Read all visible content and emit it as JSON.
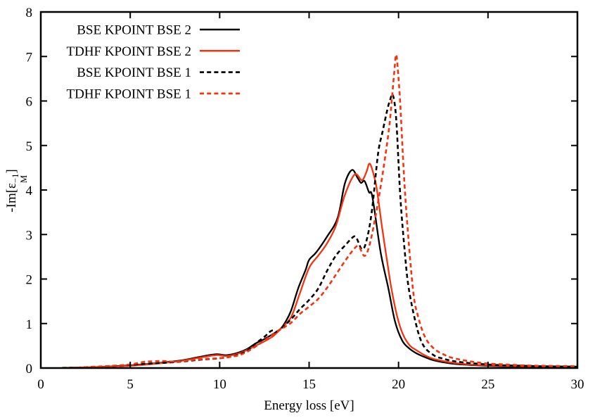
{
  "chart_data": {
    "type": "line",
    "title": "",
    "xlabel": "Energy loss [eV]",
    "ylabel": "-Im[eps_M^-1]",
    "ylabel_parts": {
      "pre": "-Im[ε",
      "sup": "−1",
      "sub": "M",
      "post": "]"
    },
    "xlim": [
      0,
      30
    ],
    "ylim": [
      0,
      8
    ],
    "x_ticks": [
      0,
      5,
      10,
      15,
      20,
      25,
      30
    ],
    "y_ticks": [
      0,
      1,
      2,
      3,
      4,
      5,
      6,
      7,
      8
    ],
    "grid": false,
    "legend_position": "top-left",
    "axis_color": "#000000",
    "series": [
      {
        "name": "BSE KPOINT BSE 2",
        "color": "#000000",
        "style": "solid",
        "points": [
          [
            1.2,
            0.005
          ],
          [
            2,
            0.01
          ],
          [
            3,
            0.02
          ],
          [
            4,
            0.04
          ],
          [
            5,
            0.06
          ],
          [
            6,
            0.09
          ],
          [
            7,
            0.13
          ],
          [
            8,
            0.18
          ],
          [
            9,
            0.26
          ],
          [
            9.8,
            0.31
          ],
          [
            10.4,
            0.29
          ],
          [
            11,
            0.34
          ],
          [
            11.5,
            0.42
          ],
          [
            12,
            0.55
          ],
          [
            12.5,
            0.65
          ],
          [
            13,
            0.77
          ],
          [
            13.4,
            0.88
          ],
          [
            13.7,
            1.05
          ],
          [
            14,
            1.3
          ],
          [
            14.4,
            1.8
          ],
          [
            14.8,
            2.2
          ],
          [
            15,
            2.43
          ],
          [
            15.4,
            2.6
          ],
          [
            16,
            2.95
          ],
          [
            16.6,
            3.38
          ],
          [
            17,
            4.15
          ],
          [
            17.4,
            4.45
          ],
          [
            17.7,
            4.28
          ],
          [
            17.9,
            4.16
          ],
          [
            18.1,
            4.2
          ],
          [
            18.35,
            3.95
          ],
          [
            18.54,
            3.84
          ],
          [
            19,
            2.6
          ],
          [
            19.43,
            1.79
          ],
          [
            19.8,
            1.05
          ],
          [
            20.2,
            0.62
          ],
          [
            20.6,
            0.44
          ],
          [
            21,
            0.33
          ],
          [
            21.5,
            0.24
          ],
          [
            22,
            0.17
          ],
          [
            23,
            0.1
          ],
          [
            24,
            0.07
          ],
          [
            25,
            0.05
          ],
          [
            26,
            0.04
          ],
          [
            27,
            0.03
          ],
          [
            28,
            0.03
          ],
          [
            29,
            0.02
          ],
          [
            30,
            0.02
          ]
        ]
      },
      {
        "name": "TDHF KPOINT BSE 2",
        "color": "#f5330f",
        "style": "solid",
        "points": [
          [
            1.2,
            0.005
          ],
          [
            2,
            0.01
          ],
          [
            3,
            0.02
          ],
          [
            4,
            0.035
          ],
          [
            5,
            0.05
          ],
          [
            6,
            0.08
          ],
          [
            7,
            0.12
          ],
          [
            8,
            0.17
          ],
          [
            9,
            0.24
          ],
          [
            9.8,
            0.29
          ],
          [
            10.4,
            0.27
          ],
          [
            11,
            0.32
          ],
          [
            11.5,
            0.4
          ],
          [
            12,
            0.5
          ],
          [
            12.5,
            0.6
          ],
          [
            13,
            0.72
          ],
          [
            13.5,
            0.92
          ],
          [
            14,
            1.15
          ],
          [
            14.5,
            1.7
          ],
          [
            15,
            2.25
          ],
          [
            15.5,
            2.52
          ],
          [
            16,
            2.8
          ],
          [
            16.5,
            3.2
          ],
          [
            17,
            3.89
          ],
          [
            17.55,
            4.35
          ],
          [
            17.95,
            4.22
          ],
          [
            18.2,
            4.4
          ],
          [
            18.4,
            4.59
          ],
          [
            18.7,
            4.2
          ],
          [
            18.85,
            3.84
          ],
          [
            19.1,
            3.1
          ],
          [
            19.4,
            2.3
          ],
          [
            19.6,
            1.79
          ],
          [
            19.9,
            1.2
          ],
          [
            20.2,
            0.8
          ],
          [
            20.6,
            0.52
          ],
          [
            21,
            0.4
          ],
          [
            21.5,
            0.28
          ],
          [
            22,
            0.2
          ],
          [
            23,
            0.12
          ],
          [
            24,
            0.08
          ],
          [
            25,
            0.06
          ],
          [
            26,
            0.05
          ],
          [
            27,
            0.04
          ],
          [
            28,
            0.03
          ],
          [
            29,
            0.03
          ],
          [
            30,
            0.025
          ]
        ]
      },
      {
        "name": "BSE KPOINT BSE 1",
        "color": "#000000",
        "style": "dashed",
        "points": [
          [
            1.2,
            0.005
          ],
          [
            2,
            0.01
          ],
          [
            3,
            0.025
          ],
          [
            4,
            0.045
          ],
          [
            5,
            0.07
          ],
          [
            6,
            0.1
          ],
          [
            7,
            0.12
          ],
          [
            8,
            0.15
          ],
          [
            9,
            0.19
          ],
          [
            10,
            0.22
          ],
          [
            10.8,
            0.27
          ],
          [
            11.5,
            0.38
          ],
          [
            12,
            0.55
          ],
          [
            12.5,
            0.7
          ],
          [
            12.9,
            0.84
          ],
          [
            13.2,
            0.82
          ],
          [
            13.6,
            0.95
          ],
          [
            14,
            1.1
          ],
          [
            14.5,
            1.33
          ],
          [
            15,
            1.53
          ],
          [
            15.5,
            1.78
          ],
          [
            16,
            2.18
          ],
          [
            16.5,
            2.53
          ],
          [
            17,
            2.75
          ],
          [
            17.3,
            2.88
          ],
          [
            17.6,
            2.95
          ],
          [
            17.95,
            2.67
          ],
          [
            18.2,
            2.85
          ],
          [
            18.5,
            3.5
          ],
          [
            18.85,
            4.8
          ],
          [
            19.1,
            5.3
          ],
          [
            19.4,
            5.85
          ],
          [
            19.55,
            6.05
          ],
          [
            19.65,
            6.15
          ],
          [
            19.78,
            5.95
          ],
          [
            19.9,
            5.4
          ],
          [
            20.1,
            3.85
          ],
          [
            20.35,
            2.6
          ],
          [
            20.57,
            1.79
          ],
          [
            21,
            0.95
          ],
          [
            21.4,
            0.5
          ],
          [
            22,
            0.28
          ],
          [
            22.5,
            0.21
          ],
          [
            23,
            0.16
          ],
          [
            24,
            0.11
          ],
          [
            25,
            0.08
          ],
          [
            26,
            0.06
          ],
          [
            27,
            0.05
          ],
          [
            28,
            0.04
          ],
          [
            29,
            0.035
          ],
          [
            30,
            0.03
          ]
        ]
      },
      {
        "name": "TDHF KPOINT BSE 1",
        "color": "#f5330f",
        "style": "dashed",
        "points": [
          [
            1.2,
            0.005
          ],
          [
            2,
            0.01
          ],
          [
            3,
            0.03
          ],
          [
            4,
            0.05
          ],
          [
            5,
            0.08
          ],
          [
            5.8,
            0.14
          ],
          [
            6.3,
            0.15
          ],
          [
            6.8,
            0.16
          ],
          [
            7.5,
            0.14
          ],
          [
            8,
            0.16
          ],
          [
            9,
            0.2
          ],
          [
            10,
            0.22
          ],
          [
            11,
            0.28
          ],
          [
            11.5,
            0.36
          ],
          [
            12,
            0.48
          ],
          [
            12.5,
            0.62
          ],
          [
            13,
            0.76
          ],
          [
            13.5,
            0.89
          ],
          [
            14,
            1.02
          ],
          [
            14.5,
            1.22
          ],
          [
            15,
            1.38
          ],
          [
            15.5,
            1.55
          ],
          [
            16,
            1.8
          ],
          [
            16.5,
            2.1
          ],
          [
            17,
            2.4
          ],
          [
            17.4,
            2.62
          ],
          [
            17.75,
            2.74
          ],
          [
            18.1,
            2.52
          ],
          [
            18.4,
            2.8
          ],
          [
            18.8,
            3.6
          ],
          [
            19.2,
            4.6
          ],
          [
            19.5,
            5.5
          ],
          [
            19.75,
            6.6
          ],
          [
            19.87,
            7.04
          ],
          [
            20,
            6.5
          ],
          [
            20.1,
            5.9
          ],
          [
            20.38,
            3.84
          ],
          [
            20.8,
            1.79
          ],
          [
            21.1,
            1.15
          ],
          [
            21.5,
            0.68
          ],
          [
            22,
            0.43
          ],
          [
            22.5,
            0.31
          ],
          [
            23,
            0.23
          ],
          [
            24,
            0.15
          ],
          [
            25,
            0.1
          ],
          [
            26,
            0.08
          ],
          [
            27,
            0.06
          ],
          [
            28,
            0.05
          ],
          [
            29,
            0.045
          ],
          [
            30,
            0.04
          ]
        ]
      }
    ]
  }
}
